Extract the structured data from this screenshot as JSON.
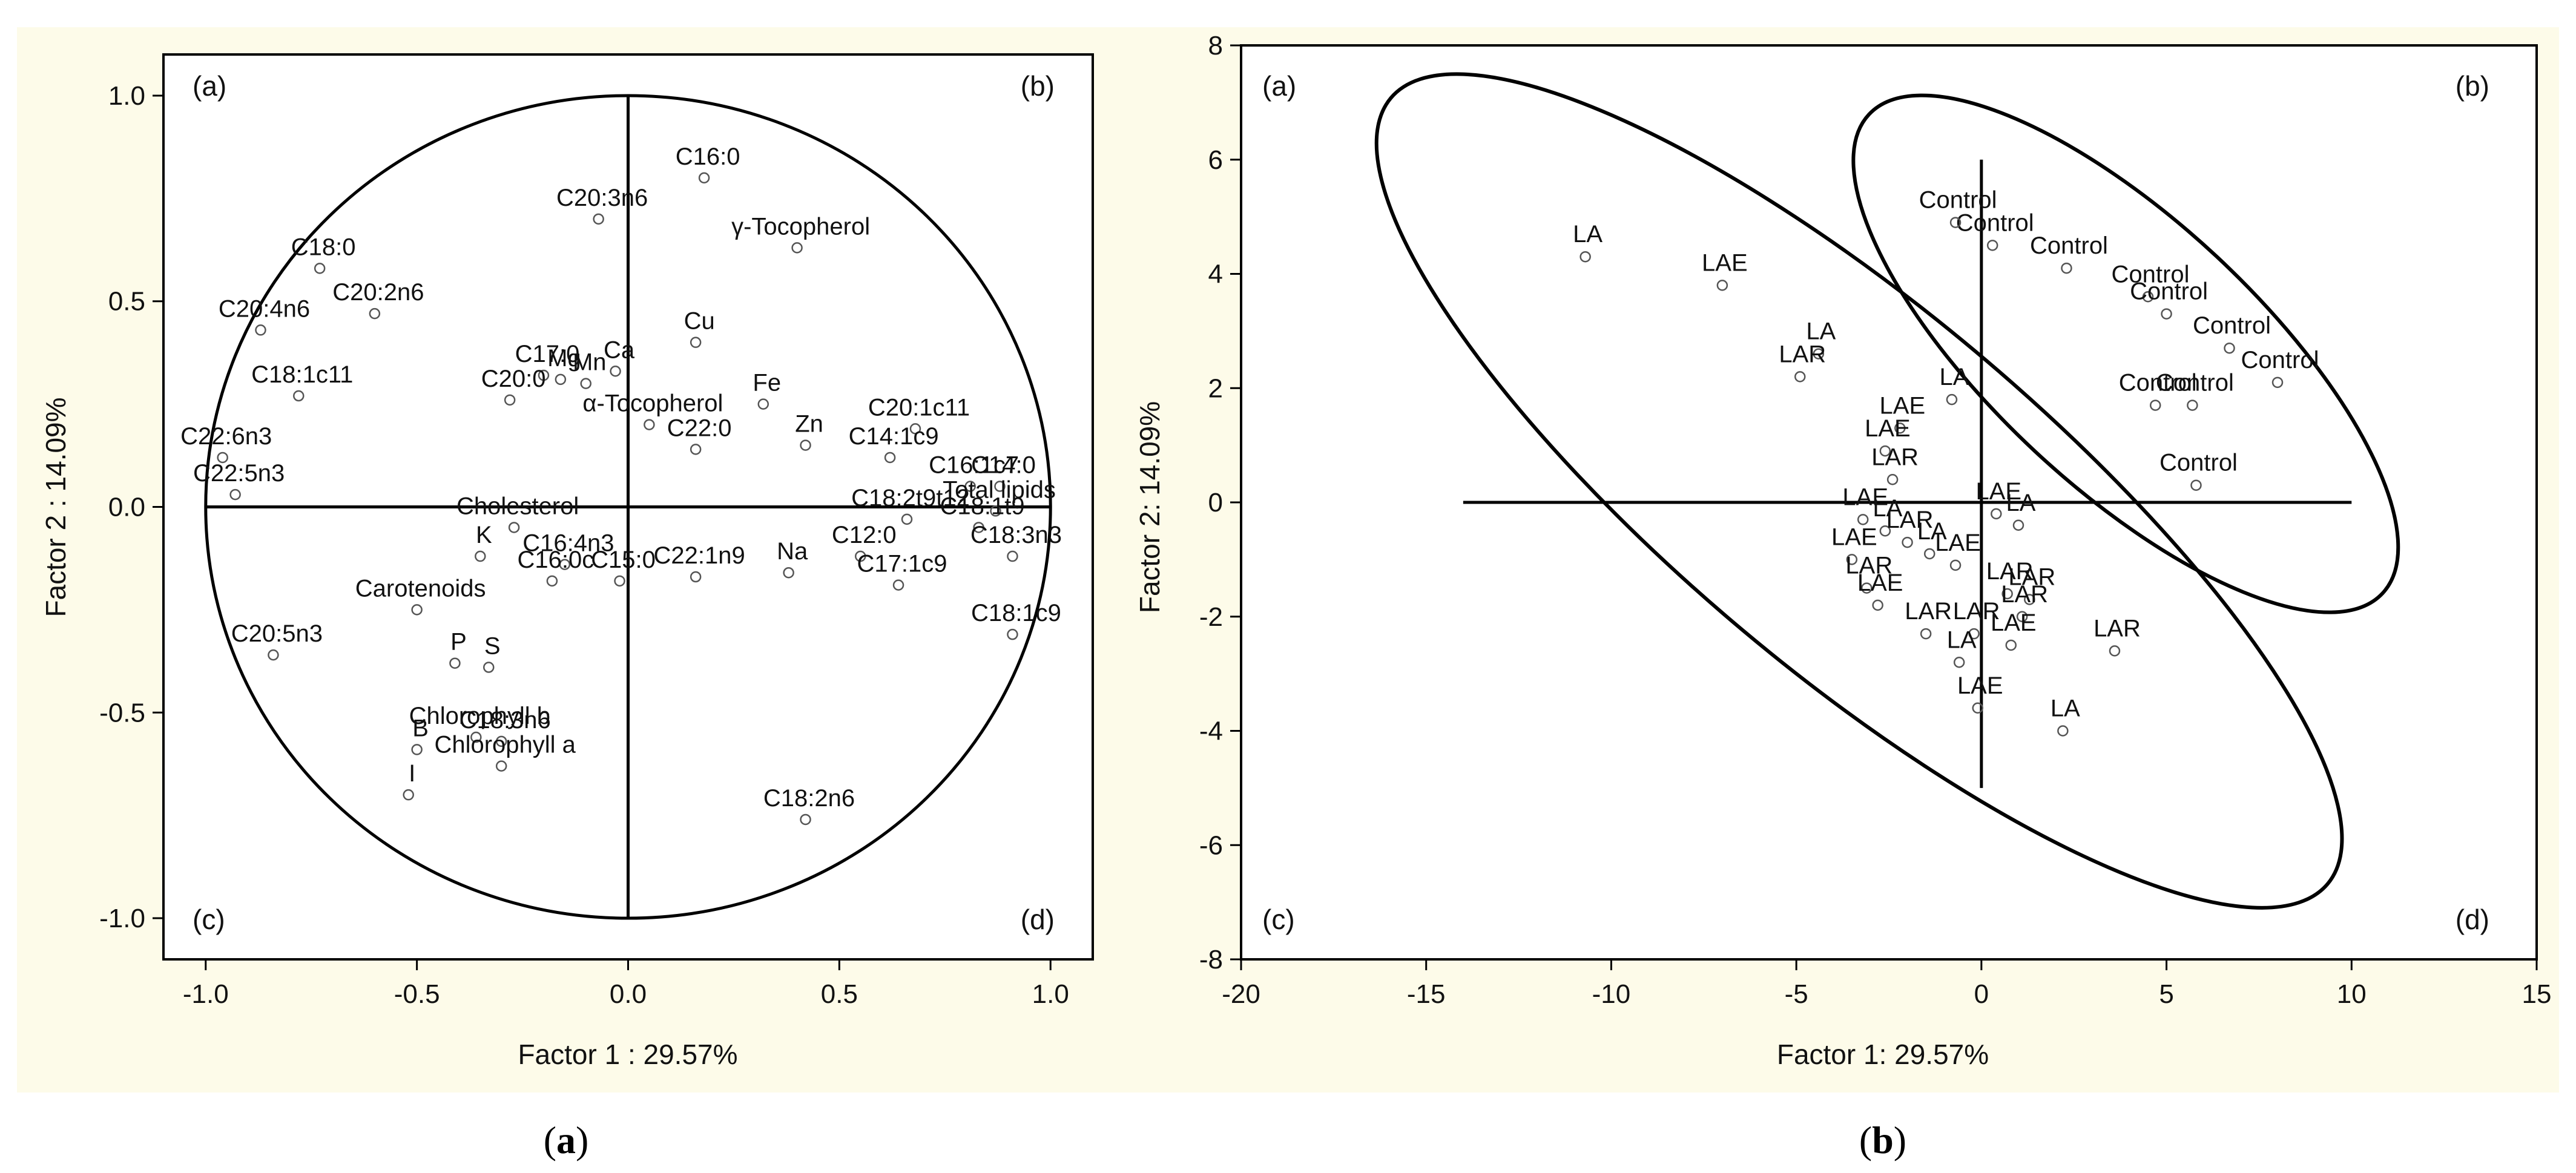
{
  "panels": {
    "left": {
      "subcaption": "a",
      "corners": [
        "(a)",
        "(b)",
        "(c)",
        "(d)"
      ]
    },
    "right": {
      "subcaption": "b",
      "corners": [
        "(a)",
        "(b)",
        "(c)",
        "(d)"
      ]
    }
  },
  "colors": {
    "background": "#fdfbe9",
    "frame": "#000000",
    "marker": "#555555"
  },
  "chart_data": [
    {
      "type": "scatter",
      "title": "",
      "xlabel": "Factor 1 : 29.57%",
      "ylabel": "Factor 2 : 14.09%",
      "xlim": [
        -1.1,
        1.1
      ],
      "ylim": [
        -1.1,
        1.1
      ],
      "xticks": [
        "-1.0",
        "-0.5",
        "0.0",
        "0.5",
        "1.0"
      ],
      "yticks": [
        "-1.0",
        "-0.5",
        "0.0",
        "0.5",
        "1.0"
      ],
      "grid": false,
      "unit_circle": true,
      "points": [
        {
          "label": "C16:0",
          "x": 0.18,
          "y": 0.8
        },
        {
          "label": "C20:3n6",
          "x": -0.07,
          "y": 0.7
        },
        {
          "label": "γ-Tocopherol",
          "x": 0.4,
          "y": 0.63
        },
        {
          "label": "C18:0",
          "x": -0.73,
          "y": 0.58
        },
        {
          "label": "C20:2n6",
          "x": -0.6,
          "y": 0.47
        },
        {
          "label": "C20:4n6",
          "x": -0.87,
          "y": 0.43
        },
        {
          "label": "Cu",
          "x": 0.16,
          "y": 0.4
        },
        {
          "label": "C17:0",
          "x": -0.2,
          "y": 0.32
        },
        {
          "label": "Mg",
          "x": -0.16,
          "y": 0.31
        },
        {
          "label": "Mn",
          "x": -0.1,
          "y": 0.3
        },
        {
          "label": "Ca",
          "x": -0.03,
          "y": 0.33
        },
        {
          "label": "C20:0",
          "x": -0.28,
          "y": 0.26
        },
        {
          "label": "Fe",
          "x": 0.32,
          "y": 0.25
        },
        {
          "label": "C18:1c11",
          "x": -0.78,
          "y": 0.27
        },
        {
          "label": "α-Tocopherol",
          "x": 0.05,
          "y": 0.2
        },
        {
          "label": "C22:0",
          "x": 0.16,
          "y": 0.14
        },
        {
          "label": "Zn",
          "x": 0.42,
          "y": 0.15
        },
        {
          "label": "C20:1c11",
          "x": 0.68,
          "y": 0.19
        },
        {
          "label": "C14:1c9",
          "x": 0.62,
          "y": 0.12
        },
        {
          "label": "C22:6n3",
          "x": -0.96,
          "y": 0.12
        },
        {
          "label": "C22:5n3",
          "x": -0.93,
          "y": 0.03
        },
        {
          "label": "C16:1c7",
          "x": 0.81,
          "y": 0.05
        },
        {
          "label": "C14:0",
          "x": 0.88,
          "y": 0.05
        },
        {
          "label": "Total lipids",
          "x": 0.87,
          "y": -0.01
        },
        {
          "label": "C18:2t9t12",
          "x": 0.66,
          "y": -0.03
        },
        {
          "label": "C18:1t9",
          "x": 0.83,
          "y": -0.05
        },
        {
          "label": "C18:3n3",
          "x": 0.91,
          "y": -0.12
        },
        {
          "label": "Cholesterol",
          "x": -0.27,
          "y": -0.05
        },
        {
          "label": "C12:0",
          "x": 0.55,
          "y": -0.12
        },
        {
          "label": "K",
          "x": -0.35,
          "y": -0.12
        },
        {
          "label": "C16:4n3",
          "x": -0.15,
          "y": -0.14
        },
        {
          "label": "C15:0",
          "x": -0.02,
          "y": -0.18
        },
        {
          "label": "C16:0c",
          "x": -0.18,
          "y": -0.18
        },
        {
          "label": "C22:1n9",
          "x": 0.16,
          "y": -0.17
        },
        {
          "label": "Na",
          "x": 0.38,
          "y": -0.16
        },
        {
          "label": "C17:1c9",
          "x": 0.64,
          "y": -0.19
        },
        {
          "label": "Carotenoids",
          "x": -0.5,
          "y": -0.25
        },
        {
          "label": "C18:1c9",
          "x": 0.91,
          "y": -0.31
        },
        {
          "label": "C20:5n3",
          "x": -0.84,
          "y": -0.36
        },
        {
          "label": "P",
          "x": -0.41,
          "y": -0.38
        },
        {
          "label": "S",
          "x": -0.33,
          "y": -0.39
        },
        {
          "label": "C18:3n6",
          "x": -0.3,
          "y": -0.57
        },
        {
          "label": "Chlorophyll b",
          "x": -0.36,
          "y": -0.56
        },
        {
          "label": "B",
          "x": -0.5,
          "y": -0.59
        },
        {
          "label": "Chlorophyll a",
          "x": -0.3,
          "y": -0.63
        },
        {
          "label": "I",
          "x": -0.52,
          "y": -0.7
        },
        {
          "label": "C18:2n6",
          "x": 0.42,
          "y": -0.76
        }
      ]
    },
    {
      "type": "scatter",
      "title": "",
      "xlabel": "Factor 1: 29.57%",
      "ylabel": "Factor 2: 14.09%",
      "xlim": [
        -20,
        15
      ],
      "ylim": [
        -8,
        8
      ],
      "xticks": [
        "-20",
        "-15",
        "-10",
        "-5",
        "0",
        "5",
        "10",
        "15"
      ],
      "yticks": [
        "-8",
        "-6",
        "-4",
        "-2",
        "0",
        "2",
        "4",
        "6",
        "8"
      ],
      "grid": false,
      "ellipses": [
        "LA / LAE / LAR group",
        "Control group"
      ],
      "points": [
        {
          "label": "LA",
          "x": -10.7,
          "y": 4.3
        },
        {
          "label": "LAE",
          "x": -7.0,
          "y": 3.8
        },
        {
          "label": "LA",
          "x": -4.4,
          "y": 2.6
        },
        {
          "label": "LAR",
          "x": -4.9,
          "y": 2.2
        },
        {
          "label": "LA",
          "x": -0.8,
          "y": 1.8
        },
        {
          "label": "LAE",
          "x": -2.2,
          "y": 1.3
        },
        {
          "label": "LAE",
          "x": -2.6,
          "y": 0.9
        },
        {
          "label": "LAR",
          "x": -2.4,
          "y": 0.4
        },
        {
          "label": "LAE",
          "x": -3.2,
          "y": -0.3
        },
        {
          "label": "LA",
          "x": -2.6,
          "y": -0.5
        },
        {
          "label": "LAR",
          "x": -2.0,
          "y": -0.7
        },
        {
          "label": "LA",
          "x": -1.4,
          "y": -0.9
        },
        {
          "label": "LAE",
          "x": 0.4,
          "y": -0.2
        },
        {
          "label": "LA",
          "x": 1.0,
          "y": -0.4
        },
        {
          "label": "LAE",
          "x": -0.7,
          "y": -1.1
        },
        {
          "label": "LAE",
          "x": -3.5,
          "y": -1.0
        },
        {
          "label": "LAR",
          "x": -3.1,
          "y": -1.5
        },
        {
          "label": "LAE",
          "x": -2.8,
          "y": -1.8
        },
        {
          "label": "LAR",
          "x": 0.7,
          "y": -1.6
        },
        {
          "label": "LAR",
          "x": 1.3,
          "y": -1.7
        },
        {
          "label": "LAR",
          "x": 1.1,
          "y": -2.0
        },
        {
          "label": "LAR",
          "x": -1.5,
          "y": -2.3
        },
        {
          "label": "LAR",
          "x": -0.2,
          "y": -2.3
        },
        {
          "label": "LAE",
          "x": 0.8,
          "y": -2.5
        },
        {
          "label": "LA",
          "x": -0.6,
          "y": -2.8
        },
        {
          "label": "LAE",
          "x": -0.1,
          "y": -3.6
        },
        {
          "label": "LAR",
          "x": 3.6,
          "y": -2.6
        },
        {
          "label": "LA",
          "x": 2.2,
          "y": -4.0
        },
        {
          "label": "Control",
          "x": 0.3,
          "y": 4.5
        },
        {
          "label": "Control",
          "x": -0.7,
          "y": 4.9
        },
        {
          "label": "Control",
          "x": 2.3,
          "y": 4.1
        },
        {
          "label": "Control",
          "x": 4.5,
          "y": 3.6
        },
        {
          "label": "Control",
          "x": 5.0,
          "y": 3.3
        },
        {
          "label": "Control",
          "x": 6.7,
          "y": 2.7
        },
        {
          "label": "Control",
          "x": 8.0,
          "y": 2.1
        },
        {
          "label": "Control",
          "x": 4.7,
          "y": 1.7
        },
        {
          "label": "Control",
          "x": 5.7,
          "y": 1.7
        },
        {
          "label": "Control",
          "x": 5.8,
          "y": 0.3
        }
      ]
    }
  ]
}
